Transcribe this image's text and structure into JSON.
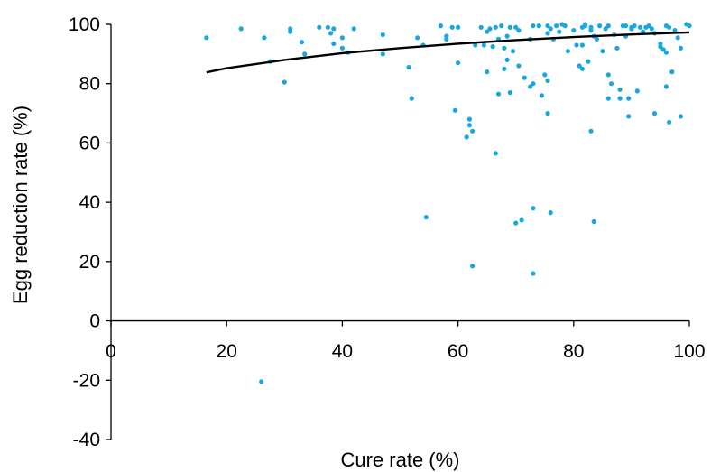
{
  "chart_data": {
    "type": "scatter",
    "title": "",
    "xlabel": "Cure rate (%)",
    "ylabel": "Egg reduction rate (%)",
    "xlim": [
      0,
      100
    ],
    "ylim": [
      -40,
      100
    ],
    "xticks": [
      "0",
      "20",
      "40",
      "60",
      "80",
      "100"
    ],
    "yticks": [
      "-40",
      "-20",
      "0",
      "20",
      "40",
      "60",
      "80",
      "100"
    ],
    "grid": false,
    "legend": "none",
    "point_color": "#1aa7e0",
    "trend_color": "#000000",
    "points": [
      [
        16.5,
        95.5
      ],
      [
        22.5,
        98.5
      ],
      [
        26,
        -20.5
      ],
      [
        26.5,
        95.5
      ],
      [
        27.5,
        87.5
      ],
      [
        30,
        80.5
      ],
      [
        31,
        97.5
      ],
      [
        31,
        98.5
      ],
      [
        33,
        94
      ],
      [
        33.5,
        90
      ],
      [
        36,
        99
      ],
      [
        37.5,
        99
      ],
      [
        38,
        97
      ],
      [
        38.5,
        98.5
      ],
      [
        38.5,
        93.5
      ],
      [
        40,
        95.5
      ],
      [
        40,
        92
      ],
      [
        41,
        90.5
      ],
      [
        42,
        98.5
      ],
      [
        47,
        96.5
      ],
      [
        47,
        90
      ],
      [
        51.5,
        85.5
      ],
      [
        52,
        75
      ],
      [
        53,
        95.5
      ],
      [
        54,
        93
      ],
      [
        54.5,
        35
      ],
      [
        57,
        99.5
      ],
      [
        58,
        96
      ],
      [
        58,
        95
      ],
      [
        59,
        99
      ],
      [
        59.5,
        71
      ],
      [
        60,
        99
      ],
      [
        60,
        87
      ],
      [
        61.5,
        62
      ],
      [
        62,
        66
      ],
      [
        62,
        68
      ],
      [
        62.5,
        64
      ],
      [
        62.5,
        18.5
      ],
      [
        63,
        93
      ],
      [
        64,
        99
      ],
      [
        64.5,
        93
      ],
      [
        65,
        97.5
      ],
      [
        65,
        84
      ],
      [
        65.5,
        98.5
      ],
      [
        66,
        92.5
      ],
      [
        66.5,
        99
      ],
      [
        66.5,
        56.5
      ],
      [
        67,
        95
      ],
      [
        67,
        76.5
      ],
      [
        67.5,
        99.5
      ],
      [
        68,
        92
      ],
      [
        68,
        85
      ],
      [
        68.5,
        96
      ],
      [
        68.5,
        88
      ],
      [
        69,
        99
      ],
      [
        69,
        77
      ],
      [
        69.5,
        91
      ],
      [
        70,
        99
      ],
      [
        70,
        33
      ],
      [
        70.5,
        98
      ],
      [
        70.5,
        86
      ],
      [
        71,
        34
      ],
      [
        71.5,
        82
      ],
      [
        72.5,
        79
      ],
      [
        72.5,
        95
      ],
      [
        73,
        99.5
      ],
      [
        73,
        80
      ],
      [
        73,
        38
      ],
      [
        73,
        16
      ],
      [
        74,
        99.5
      ],
      [
        74.5,
        76
      ],
      [
        75,
        83
      ],
      [
        75.5,
        99.5
      ],
      [
        75.5,
        97
      ],
      [
        75.5,
        81
      ],
      [
        75.5,
        70
      ],
      [
        76,
        98.5
      ],
      [
        76,
        36.5
      ],
      [
        76.5,
        95
      ],
      [
        77,
        99.5
      ],
      [
        77.5,
        97.5
      ],
      [
        78,
        100
      ],
      [
        78.5,
        99.5
      ],
      [
        79,
        91
      ],
      [
        80,
        98
      ],
      [
        80.5,
        93
      ],
      [
        81,
        86
      ],
      [
        81.5,
        99
      ],
      [
        81.5,
        85
      ],
      [
        81.5,
        93
      ],
      [
        82,
        100
      ],
      [
        82,
        99.5
      ],
      [
        82.5,
        87.5
      ],
      [
        83,
        99
      ],
      [
        83,
        98
      ],
      [
        83,
        64
      ],
      [
        83.5,
        96
      ],
      [
        83.5,
        33.5
      ],
      [
        84,
        95
      ],
      [
        84.5,
        99.5
      ],
      [
        85,
        91
      ],
      [
        85.5,
        98.5
      ],
      [
        86,
        99.5
      ],
      [
        86,
        83
      ],
      [
        86,
        75
      ],
      [
        86.5,
        80
      ],
      [
        87,
        96.5
      ],
      [
        87.5,
        92
      ],
      [
        88,
        78
      ],
      [
        88,
        75
      ],
      [
        88.5,
        99.5
      ],
      [
        89,
        99.5
      ],
      [
        89,
        96
      ],
      [
        89.5,
        75
      ],
      [
        89.5,
        69
      ],
      [
        90,
        99
      ],
      [
        90,
        98.5
      ],
      [
        90.5,
        99.5
      ],
      [
        91,
        77.5
      ],
      [
        91.5,
        99
      ],
      [
        92,
        97.5
      ],
      [
        92.5,
        99
      ],
      [
        93,
        99.5
      ],
      [
        93.5,
        98.5
      ],
      [
        94,
        97
      ],
      [
        94,
        70
      ],
      [
        95,
        93.5
      ],
      [
        95,
        92.5
      ],
      [
        95.5,
        91.5
      ],
      [
        96,
        99.5
      ],
      [
        96,
        90.5
      ],
      [
        96,
        79
      ],
      [
        96.5,
        67
      ],
      [
        96.5,
        99
      ],
      [
        97,
        84
      ],
      [
        97.5,
        98
      ],
      [
        98,
        95.5
      ],
      [
        98.5,
        92
      ],
      [
        98.5,
        69
      ],
      [
        99.5,
        100
      ],
      [
        100,
        99.5
      ]
    ],
    "trendline": {
      "x": [
        16.5,
        20,
        30,
        40,
        50,
        60,
        70,
        80,
        90,
        100
      ],
      "y": [
        83.8,
        85.2,
        88.0,
        90.3,
        92.0,
        93.5,
        94.7,
        95.7,
        96.6,
        97.3
      ]
    }
  }
}
